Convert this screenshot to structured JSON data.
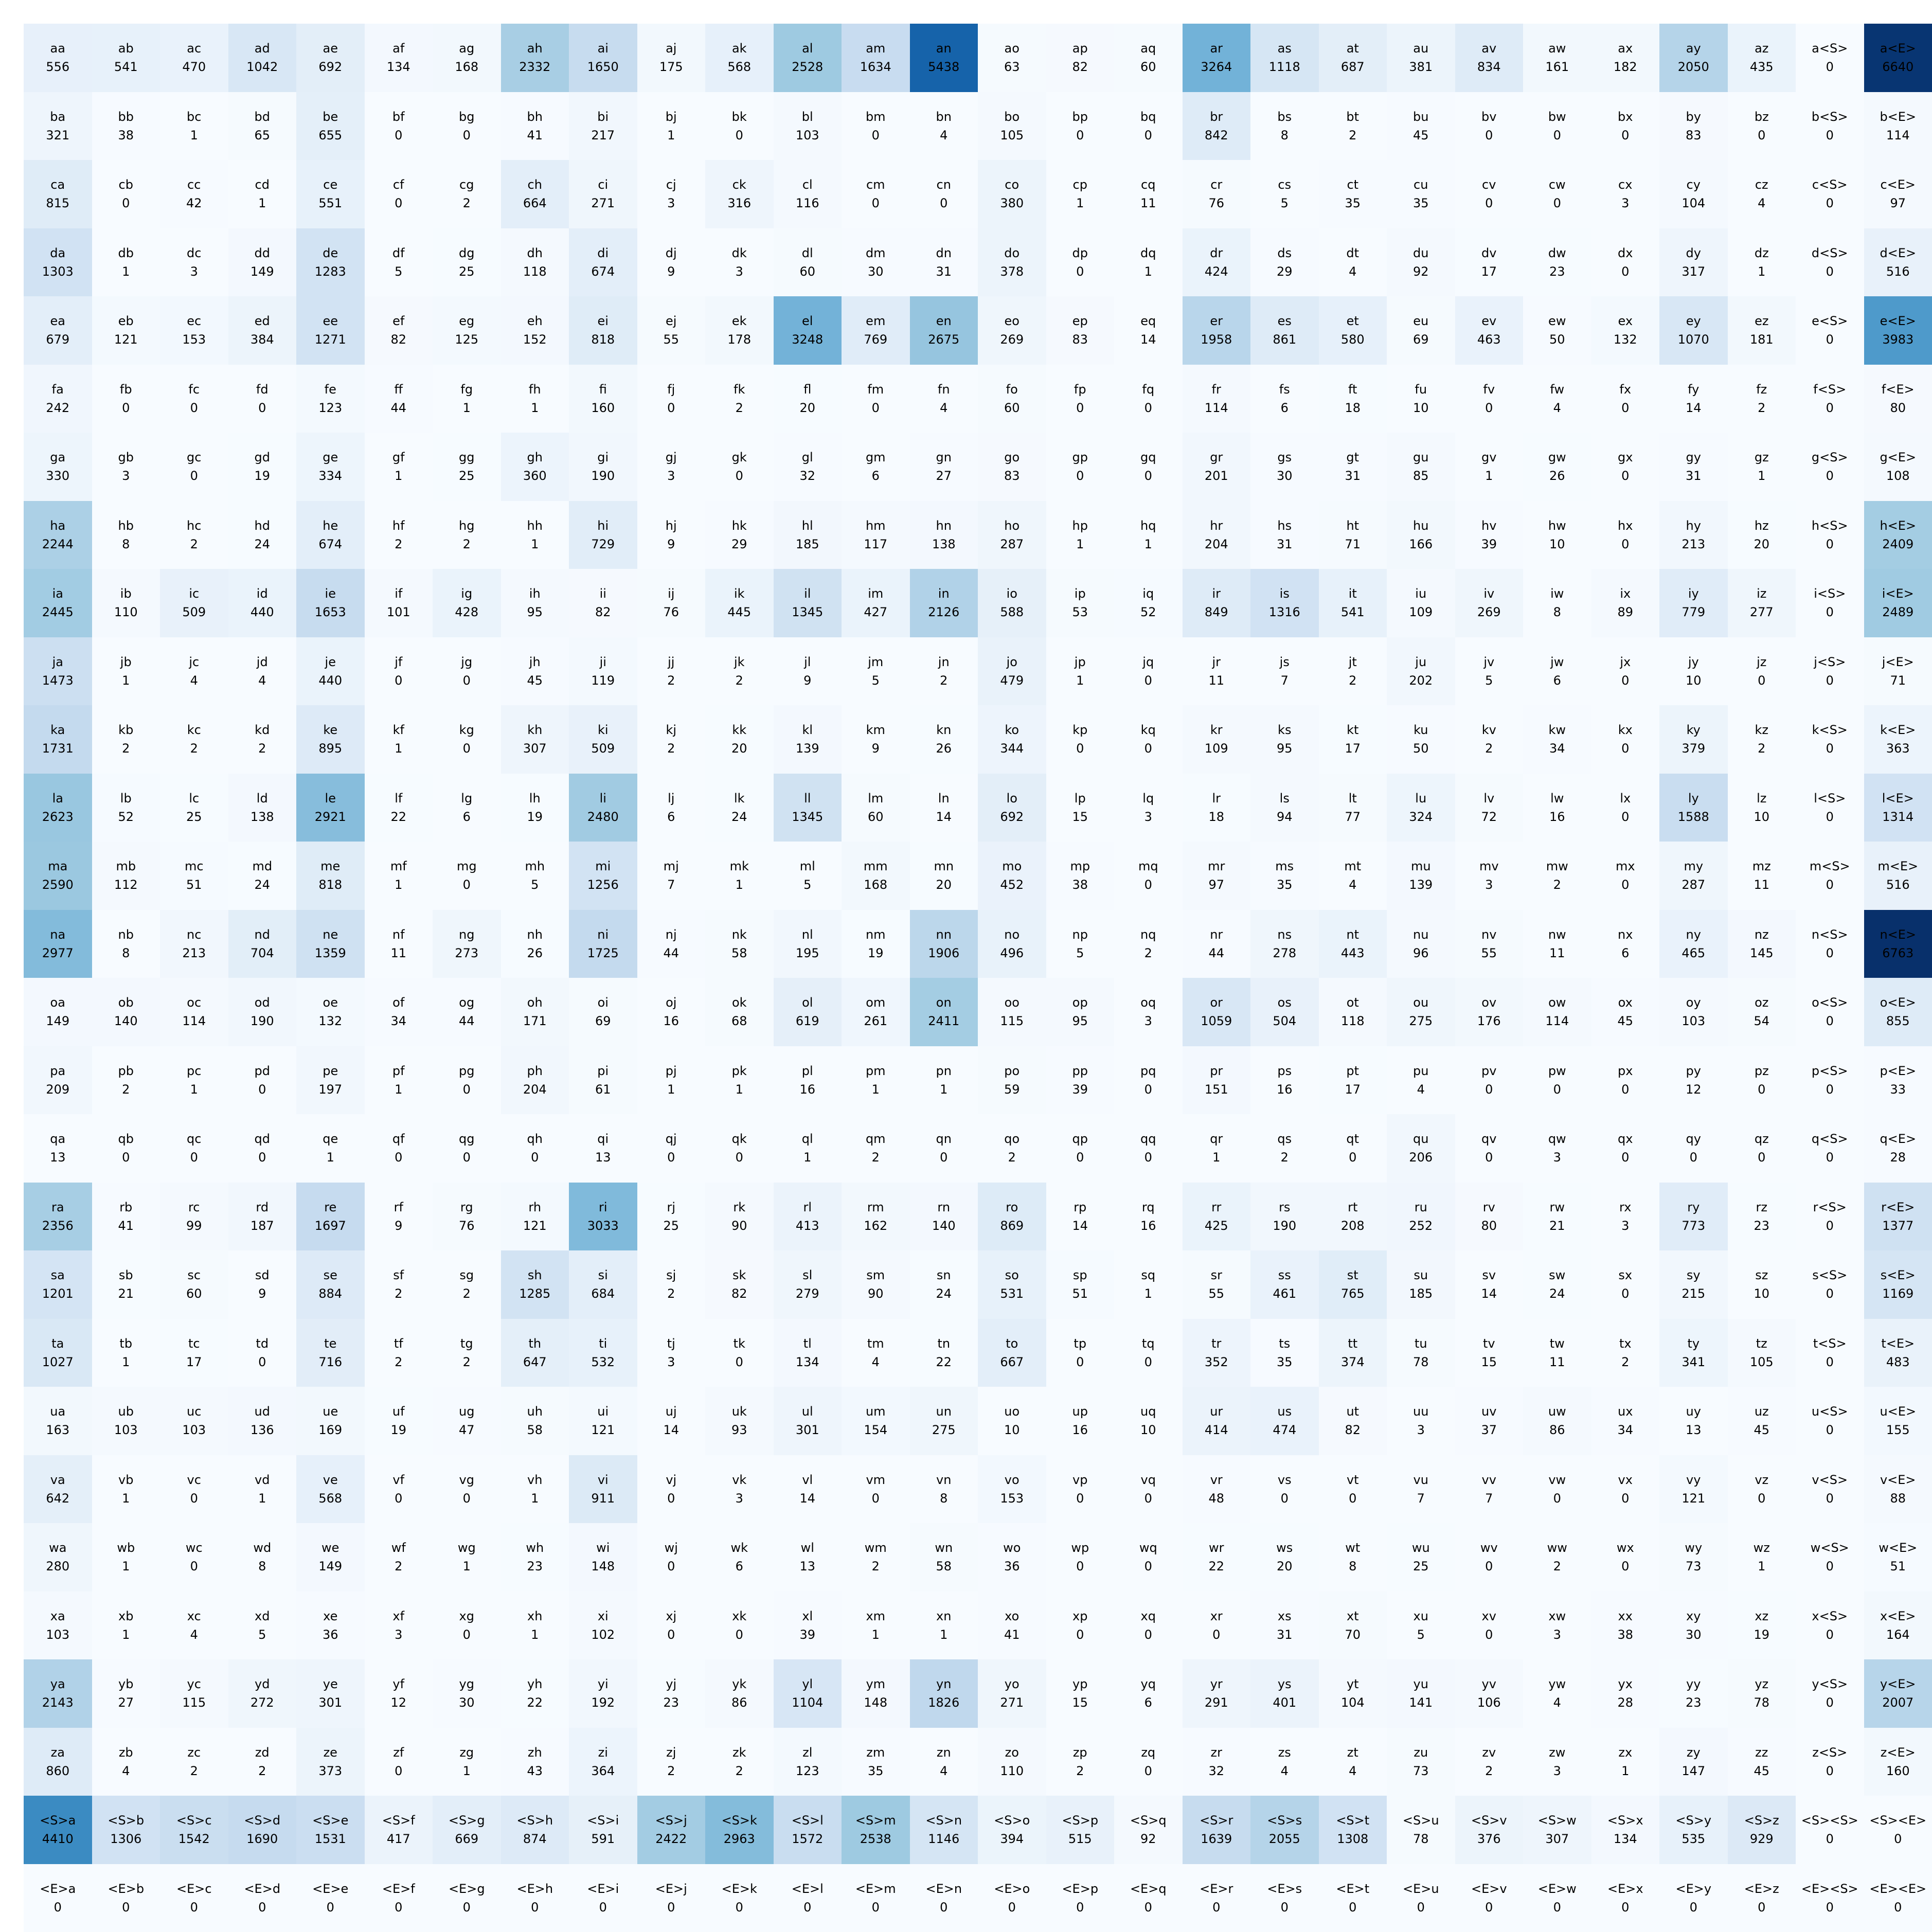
{
  "figure": {
    "background": "#ffffff",
    "annotation_text_color": "#000000"
  },
  "chart_data": {
    "type": "heatmap",
    "title": "",
    "xlabel": "",
    "ylabel": "",
    "grid": false,
    "legend": false,
    "colormap": "Blues",
    "colormap_anchors": [
      "#f7fbff",
      "#deebf7",
      "#c6dbef",
      "#9ecae1",
      "#6baed6",
      "#4292c6",
      "#2171b5",
      "#08519c",
      "#08306b"
    ],
    "vmin": 0,
    "vmax": 6763,
    "tokens": [
      "a",
      "b",
      "c",
      "d",
      "e",
      "f",
      "g",
      "h",
      "i",
      "j",
      "k",
      "l",
      "m",
      "n",
      "o",
      "p",
      "q",
      "r",
      "s",
      "t",
      "u",
      "v",
      "w",
      "x",
      "y",
      "z",
      "<S>",
      "<E>"
    ],
    "matrix": [
      [
        556,
        541,
        470,
        1042,
        692,
        134,
        168,
        2332,
        1650,
        175,
        568,
        2528,
        1634,
        5438,
        63,
        82,
        60,
        3264,
        1118,
        687,
        381,
        834,
        161,
        182,
        2050,
        435,
        0,
        6640
      ],
      [
        321,
        38,
        1,
        65,
        655,
        0,
        0,
        41,
        217,
        1,
        0,
        103,
        0,
        4,
        105,
        0,
        0,
        842,
        8,
        2,
        45,
        0,
        0,
        0,
        83,
        0,
        0,
        114
      ],
      [
        815,
        0,
        42,
        1,
        551,
        0,
        2,
        664,
        271,
        3,
        316,
        116,
        0,
        0,
        380,
        1,
        11,
        76,
        5,
        35,
        35,
        0,
        0,
        3,
        104,
        4,
        0,
        97
      ],
      [
        1303,
        1,
        3,
        149,
        1283,
        5,
        25,
        118,
        674,
        9,
        3,
        60,
        30,
        31,
        378,
        0,
        1,
        424,
        29,
        4,
        92,
        17,
        23,
        0,
        317,
        1,
        0,
        516
      ],
      [
        679,
        121,
        153,
        384,
        1271,
        82,
        125,
        152,
        818,
        55,
        178,
        3248,
        769,
        2675,
        269,
        83,
        14,
        1958,
        861,
        580,
        69,
        463,
        50,
        132,
        1070,
        181,
        0,
        3983
      ],
      [
        242,
        0,
        0,
        0,
        123,
        44,
        1,
        1,
        160,
        0,
        2,
        20,
        0,
        4,
        60,
        0,
        0,
        114,
        6,
        18,
        10,
        0,
        4,
        0,
        14,
        2,
        0,
        80
      ],
      [
        330,
        3,
        0,
        19,
        334,
        1,
        25,
        360,
        190,
        3,
        0,
        32,
        6,
        27,
        83,
        0,
        0,
        201,
        30,
        31,
        85,
        1,
        26,
        0,
        31,
        1,
        0,
        108
      ],
      [
        2244,
        8,
        2,
        24,
        674,
        2,
        2,
        1,
        729,
        9,
        29,
        185,
        117,
        138,
        287,
        1,
        1,
        204,
        31,
        71,
        166,
        39,
        10,
        0,
        213,
        20,
        0,
        2409
      ],
      [
        2445,
        110,
        509,
        440,
        1653,
        101,
        428,
        95,
        82,
        76,
        445,
        1345,
        427,
        2126,
        588,
        53,
        52,
        849,
        1316,
        541,
        109,
        269,
        8,
        89,
        779,
        277,
        0,
        2489
      ],
      [
        1473,
        1,
        4,
        4,
        440,
        0,
        0,
        45,
        119,
        2,
        2,
        9,
        5,
        2,
        479,
        1,
        0,
        11,
        7,
        2,
        202,
        5,
        6,
        0,
        10,
        0,
        0,
        71
      ],
      [
        1731,
        2,
        2,
        2,
        895,
        1,
        0,
        307,
        509,
        2,
        20,
        139,
        9,
        26,
        344,
        0,
        0,
        109,
        95,
        17,
        50,
        2,
        34,
        0,
        379,
        2,
        0,
        363
      ],
      [
        2623,
        52,
        25,
        138,
        2921,
        22,
        6,
        19,
        2480,
        6,
        24,
        1345,
        60,
        14,
        692,
        15,
        3,
        18,
        94,
        77,
        324,
        72,
        16,
        0,
        1588,
        10,
        0,
        1314
      ],
      [
        2590,
        112,
        51,
        24,
        818,
        1,
        0,
        5,
        1256,
        7,
        1,
        5,
        168,
        20,
        452,
        38,
        0,
        97,
        35,
        4,
        139,
        3,
        2,
        0,
        287,
        11,
        0,
        516
      ],
      [
        2977,
        8,
        213,
        704,
        1359,
        11,
        273,
        26,
        1725,
        44,
        58,
        195,
        19,
        1906,
        496,
        5,
        2,
        44,
        278,
        443,
        96,
        55,
        11,
        6,
        465,
        145,
        0,
        6763
      ],
      [
        149,
        140,
        114,
        190,
        132,
        34,
        44,
        171,
        69,
        16,
        68,
        619,
        261,
        2411,
        115,
        95,
        3,
        1059,
        504,
        118,
        275,
        176,
        114,
        45,
        103,
        54,
        0,
        855
      ],
      [
        209,
        2,
        1,
        0,
        197,
        1,
        0,
        204,
        61,
        1,
        1,
        16,
        1,
        1,
        59,
        39,
        0,
        151,
        16,
        17,
        4,
        0,
        0,
        0,
        12,
        0,
        0,
        33
      ],
      [
        13,
        0,
        0,
        0,
        1,
        0,
        0,
        0,
        13,
        0,
        0,
        1,
        2,
        0,
        2,
        0,
        0,
        1,
        2,
        0,
        206,
        0,
        3,
        0,
        0,
        0,
        0,
        28
      ],
      [
        2356,
        41,
        99,
        187,
        1697,
        9,
        76,
        121,
        3033,
        25,
        90,
        413,
        162,
        140,
        869,
        14,
        16,
        425,
        190,
        208,
        252,
        80,
        21,
        3,
        773,
        23,
        0,
        1377
      ],
      [
        1201,
        21,
        60,
        9,
        884,
        2,
        2,
        1285,
        684,
        2,
        82,
        279,
        90,
        24,
        531,
        51,
        1,
        55,
        461,
        765,
        185,
        14,
        24,
        0,
        215,
        10,
        0,
        1169
      ],
      [
        1027,
        1,
        17,
        0,
        716,
        2,
        2,
        647,
        532,
        3,
        0,
        134,
        4,
        22,
        667,
        0,
        0,
        352,
        35,
        374,
        78,
        15,
        11,
        2,
        341,
        105,
        0,
        483
      ],
      [
        163,
        103,
        103,
        136,
        169,
        19,
        47,
        58,
        121,
        14,
        93,
        301,
        154,
        275,
        10,
        16,
        10,
        414,
        474,
        82,
        3,
        37,
        86,
        34,
        13,
        45,
        0,
        155
      ],
      [
        642,
        1,
        0,
        1,
        568,
        0,
        0,
        1,
        911,
        0,
        3,
        14,
        0,
        8,
        153,
        0,
        0,
        48,
        0,
        0,
        7,
        7,
        0,
        0,
        121,
        0,
        0,
        88
      ],
      [
        280,
        1,
        0,
        8,
        149,
        2,
        1,
        23,
        148,
        0,
        6,
        13,
        2,
        58,
        36,
        0,
        0,
        22,
        20,
        8,
        25,
        0,
        2,
        0,
        73,
        1,
        0,
        51
      ],
      [
        103,
        1,
        4,
        5,
        36,
        3,
        0,
        1,
        102,
        0,
        0,
        39,
        1,
        1,
        41,
        0,
        0,
        0,
        31,
        70,
        5,
        0,
        3,
        38,
        30,
        19,
        0,
        164
      ],
      [
        2143,
        27,
        115,
        272,
        301,
        12,
        30,
        22,
        192,
        23,
        86,
        1104,
        148,
        1826,
        271,
        15,
        6,
        291,
        401,
        104,
        141,
        106,
        4,
        28,
        23,
        78,
        0,
        2007
      ],
      [
        860,
        4,
        2,
        2,
        373,
        0,
        1,
        43,
        364,
        2,
        2,
        123,
        35,
        4,
        110,
        2,
        0,
        32,
        4,
        4,
        73,
        2,
        3,
        1,
        147,
        45,
        0,
        160
      ],
      [
        4410,
        1306,
        1542,
        1690,
        1531,
        417,
        669,
        874,
        591,
        2422,
        2963,
        1572,
        2538,
        1146,
        394,
        515,
        92,
        1639,
        2055,
        1308,
        78,
        376,
        307,
        134,
        535,
        929,
        0,
        0
      ],
      [
        0,
        0,
        0,
        0,
        0,
        0,
        0,
        0,
        0,
        0,
        0,
        0,
        0,
        0,
        0,
        0,
        0,
        0,
        0,
        0,
        0,
        0,
        0,
        0,
        0,
        0,
        0,
        0
      ]
    ]
  }
}
